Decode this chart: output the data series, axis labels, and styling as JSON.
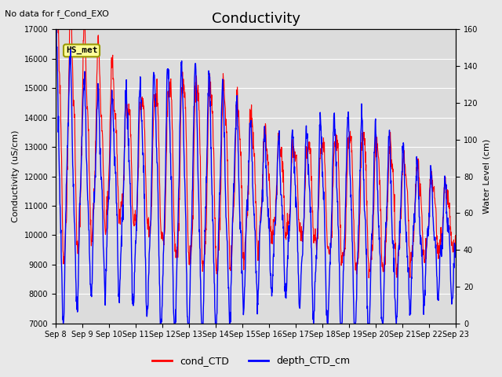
{
  "title": "Conductivity",
  "top_left_text": "No data for f_Cond_EXO",
  "station_label": "HS_met",
  "ylabel_left": "Conductivity (uS/cm)",
  "ylabel_right": "Water Level (cm)",
  "ylim_left": [
    7000,
    17000
  ],
  "ylim_right": [
    0,
    160
  ],
  "yticks_left": [
    7000,
    8000,
    9000,
    10000,
    11000,
    12000,
    13000,
    14000,
    15000,
    16000,
    17000
  ],
  "yticks_right": [
    0,
    20,
    40,
    60,
    80,
    100,
    120,
    140,
    160
  ],
  "xtick_labels": [
    "Sep 8",
    "Sep 9",
    "Sep 10",
    "Sep 11",
    "Sep 12",
    "Sep 13",
    "Sep 14",
    "Sep 15",
    "Sep 16",
    "Sep 17",
    "Sep 18",
    "Sep 19",
    "Sep 20",
    "Sep 21",
    "Sep 22",
    "Sep 23"
  ],
  "cond_color": "#FF0000",
  "depth_color": "#0000FF",
  "legend_labels": [
    "cond_CTD",
    "depth_CTD_cm"
  ],
  "background_color": "#E8E8E8",
  "plot_bg_color": "#DCDCDC",
  "grid_color": "#FFFFFF",
  "station_box_color": "#FFFF99",
  "station_box_edge": "#999900",
  "linewidth_cond": 0.8,
  "linewidth_depth": 1.0,
  "title_fontsize": 13,
  "label_fontsize": 8,
  "tick_fontsize": 7
}
